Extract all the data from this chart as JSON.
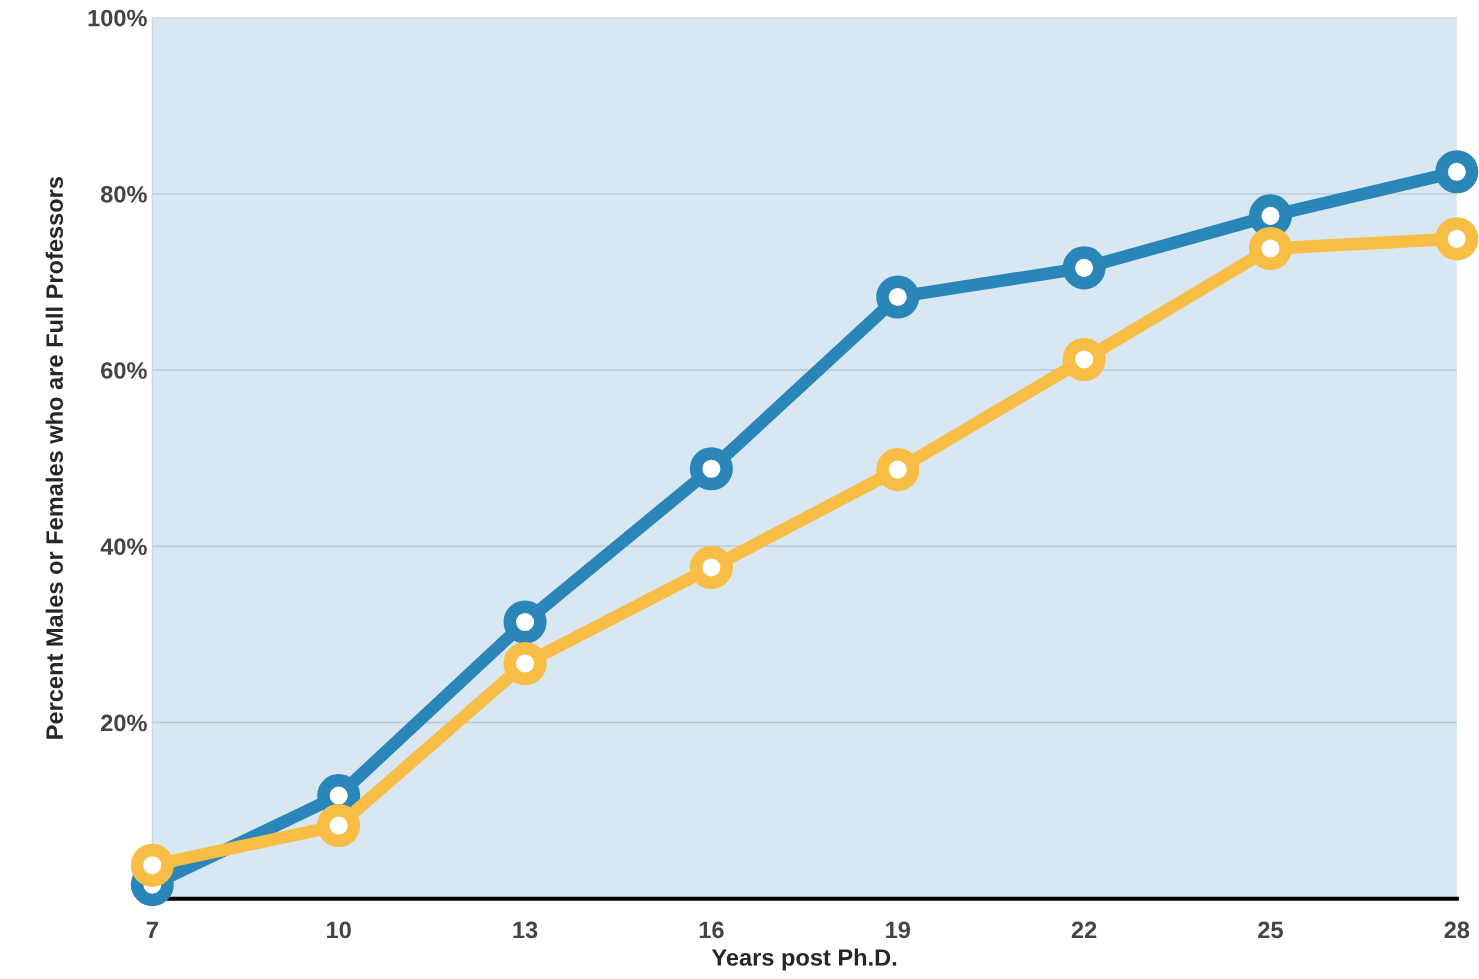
{
  "chart_data": {
    "type": "line",
    "xlabel": "Years post Ph.D.",
    "ylabel": "Percent Males or Females who are Full Professors",
    "x": [
      7,
      10,
      13,
      16,
      19,
      22,
      25,
      28
    ],
    "series": [
      {
        "color": "#2a86b8",
        "values": [
          1.6,
          11.7,
          31.4,
          48.8,
          68.3,
          71.6,
          77.5,
          82.5
        ]
      },
      {
        "color": "#f7bd45",
        "values": [
          3.8,
          8.3,
          26.7,
          37.6,
          48.7,
          61.2,
          73.8,
          74.9
        ]
      }
    ],
    "xlim": [
      7,
      28
    ],
    "xticks": [
      7,
      10,
      13,
      16,
      19,
      22,
      25,
      28
    ],
    "ylim": [
      0,
      100
    ],
    "yticks": [
      {
        "value": 20,
        "label": "20%"
      },
      {
        "value": 40,
        "label": "40%"
      },
      {
        "value": 60,
        "label": "60%"
      },
      {
        "value": 80,
        "label": "80%"
      },
      {
        "value": 100,
        "label": "100%"
      }
    ],
    "grid": "y",
    "marker": "circle",
    "line_style": "solid",
    "legend": false
  }
}
